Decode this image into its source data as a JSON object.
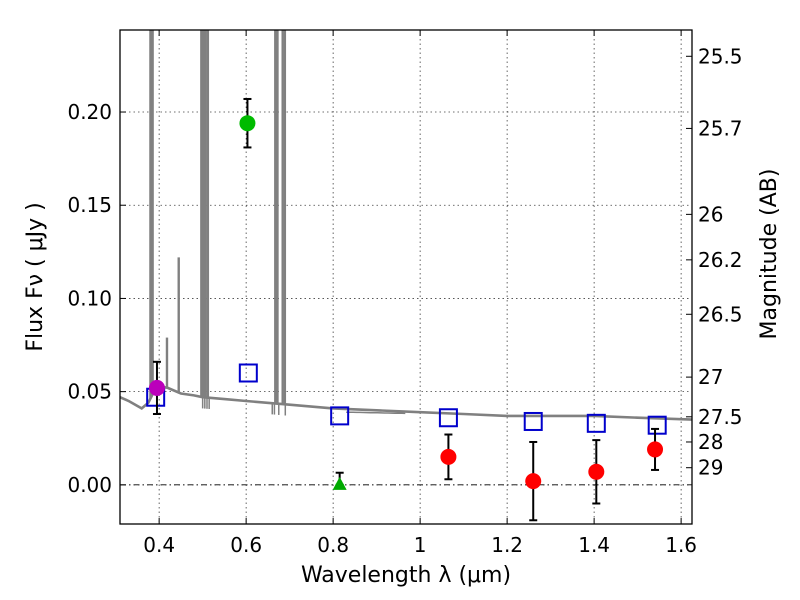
{
  "chart_data": {
    "type": "scatter",
    "xlabel": "Wavelength  λ (μm)",
    "ylabel": "Flux  Fν  ( μJy )",
    "y2label": "Magnitude (AB)",
    "xlim": [
      0.31,
      1.625
    ],
    "ylim": [
      -0.021,
      0.244
    ],
    "x_ticks": [
      0.4,
      0.6,
      0.8,
      1.0,
      1.2,
      1.4,
      1.6
    ],
    "x_tick_labels": [
      "0.4",
      "0.6",
      "0.8",
      "1",
      "1.2",
      "1.4",
      "1.6"
    ],
    "y_ticks": [
      0.0,
      0.05,
      0.1,
      0.15,
      0.2
    ],
    "y_tick_labels": [
      "0.00",
      "0.05",
      "0.10",
      "0.15",
      "0.20"
    ],
    "y2_ticks": [
      {
        "label": "25.5",
        "flux": 0.2299
      },
      {
        "label": "25.7",
        "flux": 0.1912
      },
      {
        "label": "26",
        "flux": 0.1451
      },
      {
        "label": "26.2",
        "flux": 0.1207
      },
      {
        "label": "26.5",
        "flux": 0.0915
      },
      {
        "label": "27",
        "flux": 0.0578
      },
      {
        "label": "27.5",
        "flux": 0.0365
      },
      {
        "label": "28",
        "flux": 0.023
      },
      {
        "label": "29",
        "flux": 0.0092
      }
    ],
    "grid": true,
    "zero_line": true,
    "colors": {
      "model": "#808080",
      "hst_points": "#ff0000",
      "green_point": "#00bb00",
      "magenta_point": "#bb00bb",
      "model_boxes": "#0000cc",
      "green_triangle": "#00aa00",
      "errorbar": "#000000"
    },
    "series": [
      {
        "name": "model spectrum",
        "kind": "line",
        "continuum": [
          [
            0.31,
            0.047
          ],
          [
            0.33,
            0.045
          ],
          [
            0.36,
            0.041
          ],
          [
            0.375,
            0.044
          ],
          [
            0.39,
            0.051
          ],
          [
            0.4,
            0.053
          ],
          [
            0.42,
            0.052
          ],
          [
            0.45,
            0.049
          ],
          [
            0.48,
            0.048
          ],
          [
            0.5,
            0.047
          ],
          [
            0.55,
            0.046
          ],
          [
            0.6,
            0.045
          ],
          [
            0.7,
            0.043
          ],
          [
            0.8,
            0.041
          ],
          [
            0.9,
            0.04
          ],
          [
            1.0,
            0.039
          ],
          [
            1.1,
            0.038
          ],
          [
            1.2,
            0.037
          ],
          [
            1.3,
            0.037
          ],
          [
            1.4,
            0.037
          ],
          [
            1.5,
            0.036
          ],
          [
            1.625,
            0.035
          ]
        ],
        "lines": [
          [
            0.38,
            0.244
          ],
          [
            0.385,
            0.244
          ],
          [
            0.418,
            0.079
          ],
          [
            0.445,
            0.122
          ],
          [
            0.497,
            0.244
          ],
          [
            0.502,
            0.244
          ],
          [
            0.507,
            0.244
          ],
          [
            0.512,
            0.244
          ],
          [
            0.667,
            0.244
          ],
          [
            0.672,
            0.244
          ],
          [
            0.684,
            0.244
          ],
          [
            0.689,
            0.244
          ]
        ],
        "absorption": [
          0.5,
          0.505,
          0.51,
          0.515,
          0.66,
          0.665,
          0.675,
          0.69
        ]
      },
      {
        "name": "HST photometry",
        "kind": "circle",
        "points": [
          {
            "x": 1.065,
            "y": 0.015,
            "err": 0.012
          },
          {
            "x": 1.26,
            "y": 0.002,
            "err": 0.021
          },
          {
            "x": 1.405,
            "y": 0.007,
            "err": 0.017
          },
          {
            "x": 1.54,
            "y": 0.019,
            "err": 0.011
          }
        ]
      },
      {
        "name": "optical detection",
        "kind": "circle",
        "points": [
          {
            "x": 0.603,
            "y": 0.194,
            "err": 0.013
          }
        ]
      },
      {
        "name": "UV detection",
        "kind": "circle",
        "points": [
          {
            "x": 0.395,
            "y": 0.052,
            "err": 0.014
          }
        ]
      },
      {
        "name": "synthetic photometry",
        "kind": "square",
        "points": [
          {
            "x": 0.392,
            "y": 0.047
          },
          {
            "x": 0.605,
            "y": 0.06
          },
          {
            "x": 0.815,
            "y": 0.037
          },
          {
            "x": 1.065,
            "y": 0.036
          },
          {
            "x": 1.26,
            "y": 0.034
          },
          {
            "x": 1.405,
            "y": 0.033
          },
          {
            "x": 1.545,
            "y": 0.032
          }
        ]
      },
      {
        "name": "upper limit",
        "kind": "triangle",
        "points": [
          {
            "x": 0.815,
            "y": 0.0,
            "err_hi": 0.0065,
            "err_lo": 0.0
          }
        ]
      }
    ]
  }
}
